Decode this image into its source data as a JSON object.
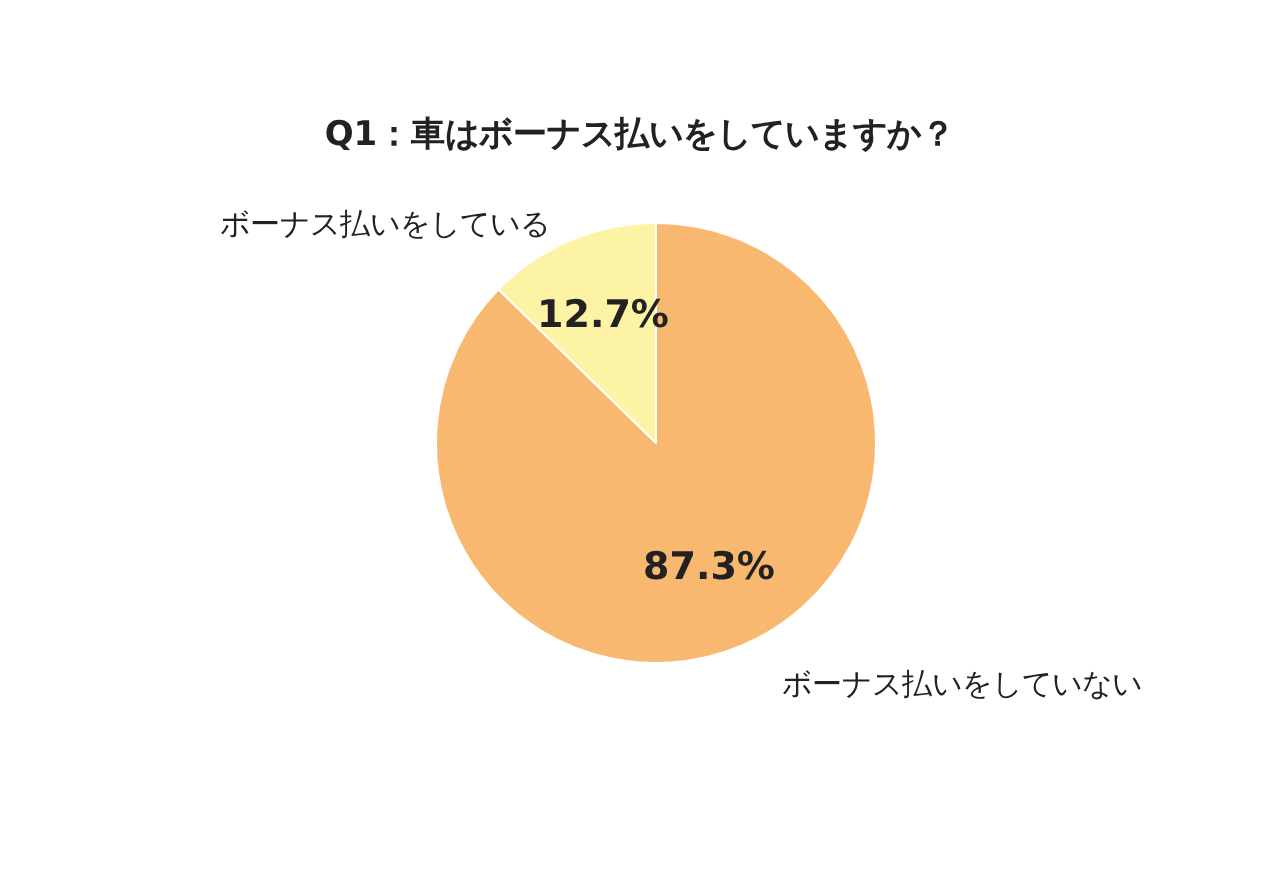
{
  "chart_data": {
    "type": "pie",
    "title": "Q1：車はボーナス払いをしていますか？",
    "categories": [
      "ボーナス払いをしていない",
      "ボーナス払いをしている"
    ],
    "values": [
      87.3,
      12.7
    ],
    "colors": [
      "#f9b870",
      "#fdf3a4"
    ],
    "value_labels": [
      "87.3%",
      "12.7%"
    ],
    "legend": false
  }
}
